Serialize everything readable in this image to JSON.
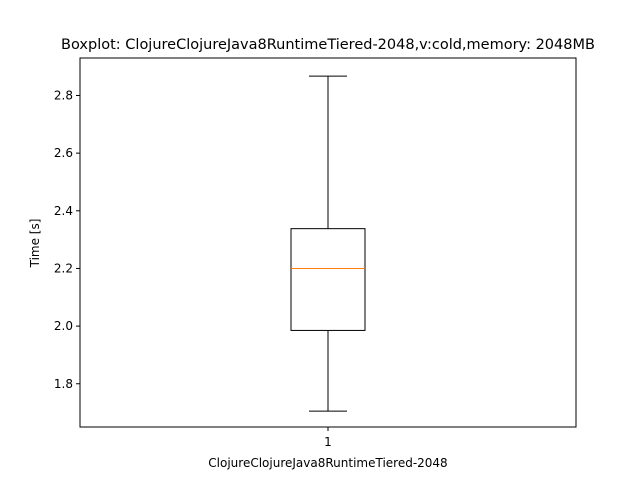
{
  "chart_data": {
    "type": "boxplot",
    "title": "Boxplot: ClojureClojureJava8RuntimeTiered-2048,v:cold,memory: 2048MB",
    "xlabel": "ClojureClojureJava8RuntimeTiered-2048",
    "ylabel": "Time [s]",
    "ylim": [
      1.65,
      2.93
    ],
    "yticks": [
      1.8,
      2.0,
      2.2,
      2.4,
      2.6,
      2.8
    ],
    "ytick_labels": [
      "1.8",
      "2.0",
      "2.2",
      "2.4",
      "2.6",
      "2.8"
    ],
    "categories": [
      "1"
    ],
    "boxes": [
      {
        "whisker_low": 1.705,
        "q1": 1.985,
        "median": 2.2,
        "q3": 2.338,
        "whisker_high": 2.867
      }
    ],
    "grid": false,
    "colors": {
      "box": "#000000",
      "median": "#ff7f0e",
      "whisker": "#000000"
    }
  }
}
